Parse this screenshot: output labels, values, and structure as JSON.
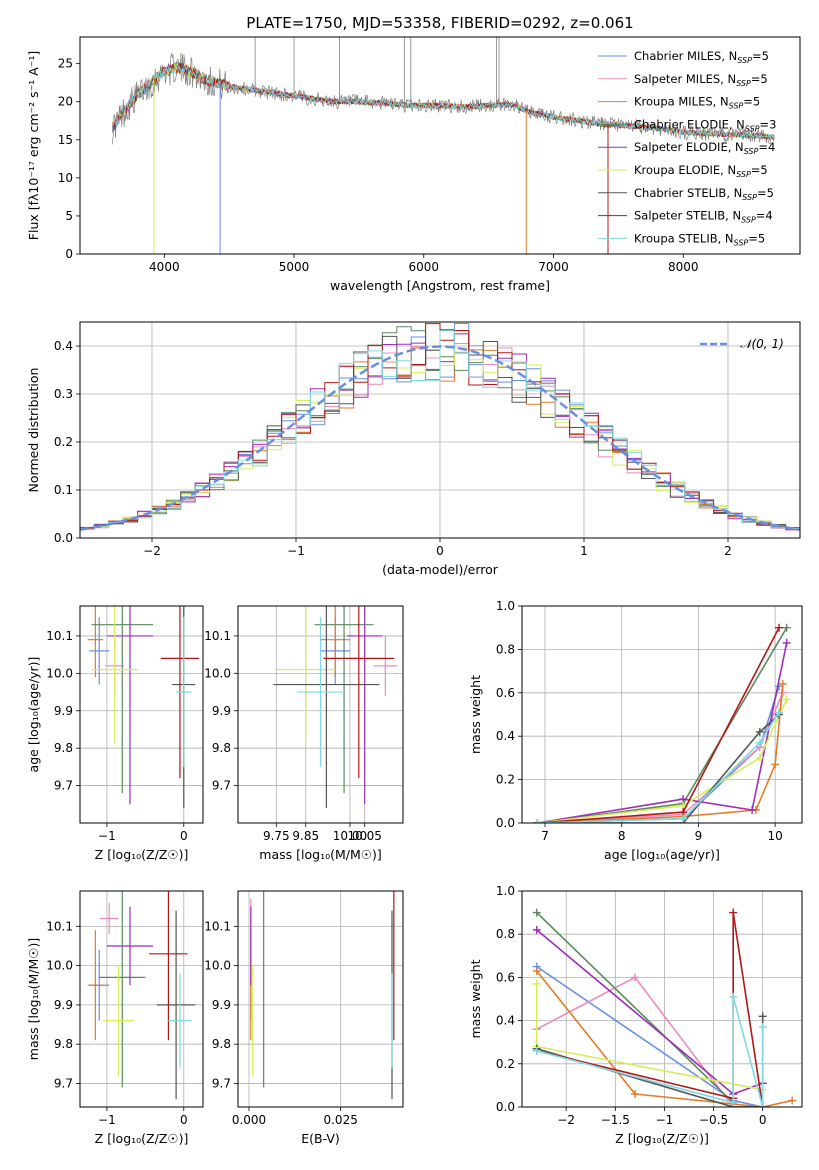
{
  "figure_title": "PLATE=1750, MJD=53358, FIBERID=0292, z=0.061",
  "colors": {
    "chabrier_miles": "#6a8fe0",
    "salpeter_miles": "#e88cbf",
    "kroupa_miles": "#e07b2c",
    "chabrier_elodie": "#5a8a5e",
    "salpeter_elodie": "#9b2fb8",
    "kroupa_elodie": "#d8ec5a",
    "chabrier_stelib": "#555555",
    "salpeter_stelib": "#b01818",
    "kroupa_stelib": "#7fd9e0",
    "grid": "#b0b0b0",
    "normal_curve": "#6a8fe0"
  },
  "chart_data": [
    {
      "id": "spectrum",
      "type": "line",
      "title": "PLATE=1750, MJD=53358, FIBERID=0292, z=0.061",
      "xlabel": "wavelength [Angstrom, rest frame]",
      "ylabel": "Flux [fλ10⁻¹⁷ erg cm⁻² s⁻¹ A⁻¹]",
      "xlim": [
        3350,
        8900
      ],
      "ylim": [
        0,
        28.5
      ],
      "xticks": [
        4000,
        5000,
        6000,
        7000,
        8000
      ],
      "yticks": [
        0,
        5,
        10,
        15,
        20,
        25
      ],
      "grid": false,
      "legend_position": "top-right",
      "legend": [
        "Chabrier MILES, N_SSP=5",
        "Salpeter MILES, N_SSP=5",
        "Kroupa MILES, N_SSP=5",
        "Chabrier ELODIE, N_SSP=3",
        "Salpeter ELODIE, N_SSP=4",
        "Kroupa ELODIE, N_SSP=5",
        "Chabrier STELIB, N_SSP=5",
        "Salpeter STELIB, N_SSP=4",
        "Kroupa STELIB, N_SSP=5"
      ],
      "trend": {
        "x": [
          3600,
          3700,
          3800,
          3900,
          4000,
          4100,
          4200,
          4300,
          4400,
          4500,
          4700,
          4900,
          5100,
          5300,
          5500,
          5700,
          5900,
          6100,
          6300,
          6500,
          6700,
          6800,
          7000,
          7200,
          7400,
          7600,
          7800,
          8000,
          8200,
          8400,
          8600,
          8700
        ],
        "y": [
          16.5,
          19,
          21,
          22.5,
          24,
          24.5,
          24,
          23,
          22.5,
          22,
          21.5,
          21,
          20.5,
          20,
          20,
          19.8,
          19.5,
          19.5,
          19.3,
          19.5,
          19.6,
          18.7,
          18,
          17.5,
          17,
          16.8,
          16.5,
          16,
          15.8,
          15.7,
          15.5,
          15.3
        ]
      }
    },
    {
      "id": "residuals",
      "type": "histogram",
      "xlabel": "(data-model)/error",
      "ylabel": "Normed distribution",
      "xlim": [
        -2.5,
        2.5
      ],
      "ylim": [
        0,
        0.45
      ],
      "xticks": [
        -2,
        -1,
        0,
        1,
        2
      ],
      "yticks": [
        0.0,
        0.1,
        0.2,
        0.3,
        0.4
      ],
      "grid": true,
      "legend_position": "top-right",
      "legend": [
        "𝒩(0, 1)"
      ],
      "normal": {
        "mu": 0,
        "sigma": 1
      }
    },
    {
      "id": "age-vs-Z",
      "type": "errorbar",
      "xlabel": "Z [log₁₀(Z/Z☉)]",
      "ylabel": "age  [log₁₀(age/yr)]",
      "xlim": [
        -1.35,
        0.25
      ],
      "ylim": [
        9.6,
        10.18
      ],
      "xticks": [
        -1,
        0
      ],
      "yticks": [
        9.7,
        9.8,
        9.9,
        10.0,
        10.1
      ],
      "grid": true,
      "points": [
        {
          "x": -1.1,
          "y": 10.06,
          "ex": 0.13,
          "ey": 0.09,
          "c": "chabrier_miles"
        },
        {
          "x": -0.9,
          "y": 10.02,
          "ex": 0.12,
          "ey": 0.08,
          "c": "salpeter_miles"
        },
        {
          "x": -1.15,
          "y": 10.09,
          "ex": 0.1,
          "ey": 0.1,
          "c": "kroupa_miles"
        },
        {
          "x": -0.8,
          "y": 10.13,
          "ex": 0.4,
          "ey": 0.45,
          "c": "chabrier_elodie"
        },
        {
          "x": -0.7,
          "y": 10.1,
          "ex": 0.3,
          "ey": 0.45,
          "c": "salpeter_elodie"
        },
        {
          "x": -0.9,
          "y": 10.01,
          "ex": 0.3,
          "ey": 0.2,
          "c": "kroupa_elodie"
        },
        {
          "x": 0.0,
          "y": 9.97,
          "ex": 0.15,
          "ey": 0.33,
          "c": "chabrier_stelib"
        },
        {
          "x": -0.05,
          "y": 10.04,
          "ex": 0.25,
          "ey": 0.32,
          "c": "salpeter_stelib"
        },
        {
          "x": 0.0,
          "y": 9.95,
          "ex": 0.1,
          "ey": 0.2,
          "c": "kroupa_stelib"
        }
      ]
    },
    {
      "id": "age-vs-mass",
      "type": "errorbar",
      "xlabel": "mass [log₁₀(M/M☉)]",
      "ylabel": "",
      "xlim": [
        9.62,
        10.18
      ],
      "ylim": [
        9.6,
        10.18
      ],
      "xticks": [
        9.75,
        9.85,
        10.0,
        10.05
      ],
      "xticklabels": [
        "9.75",
        "9.85",
        "10.00",
        "10.05"
      ],
      "yticks": [
        9.7,
        9.8,
        9.9,
        10.0,
        10.1
      ],
      "grid": true,
      "points": [
        {
          "x": 9.95,
          "y": 10.06,
          "ex": 0.05,
          "ey": 0.09,
          "c": "chabrier_miles"
        },
        {
          "x": 10.12,
          "y": 10.02,
          "ex": 0.04,
          "ey": 0.08,
          "c": "salpeter_miles"
        },
        {
          "x": 9.95,
          "y": 10.09,
          "ex": 0.05,
          "ey": 0.1,
          "c": "kroupa_miles"
        },
        {
          "x": 9.98,
          "y": 10.13,
          "ex": 0.1,
          "ey": 0.45,
          "c": "chabrier_elodie"
        },
        {
          "x": 10.05,
          "y": 10.1,
          "ex": 0.06,
          "ey": 0.45,
          "c": "salpeter_elodie"
        },
        {
          "x": 9.85,
          "y": 10.01,
          "ex": 0.1,
          "ey": 0.2,
          "c": "kroupa_elodie"
        },
        {
          "x": 9.92,
          "y": 9.97,
          "ex": 0.18,
          "ey": 0.33,
          "c": "chabrier_stelib"
        },
        {
          "x": 10.03,
          "y": 10.04,
          "ex": 0.12,
          "ey": 0.32,
          "c": "salpeter_stelib"
        },
        {
          "x": 9.9,
          "y": 9.95,
          "ex": 0.08,
          "ey": 0.2,
          "c": "kroupa_stelib"
        }
      ]
    },
    {
      "id": "weight-vs-age",
      "type": "line",
      "xlabel": "age  [log₁₀(age/yr)]",
      "ylabel": "mass weight",
      "xlim": [
        6.7,
        10.35
      ],
      "ylim": [
        0,
        1.0
      ],
      "xticks": [
        7,
        8,
        9,
        10
      ],
      "yticks": [
        0.0,
        0.2,
        0.4,
        0.6,
        0.8,
        1.0
      ],
      "grid": true,
      "series": [
        {
          "c": "chabrier_miles",
          "x": [
            6.9,
            8.8,
            9.8,
            10.05
          ],
          "y": [
            0.0,
            0.02,
            0.35,
            0.63
          ]
        },
        {
          "c": "salpeter_miles",
          "x": [
            6.9,
            8.8,
            9.8,
            10.1
          ],
          "y": [
            0.0,
            0.04,
            0.35,
            0.6
          ]
        },
        {
          "c": "kroupa_miles",
          "x": [
            6.9,
            8.8,
            9.75,
            10.0,
            10.1
          ],
          "y": [
            0.0,
            0.03,
            0.06,
            0.27,
            0.64
          ]
        },
        {
          "c": "chabrier_elodie",
          "x": [
            6.9,
            8.8,
            10.15
          ],
          "y": [
            0.0,
            0.09,
            0.9
          ]
        },
        {
          "c": "salpeter_elodie",
          "x": [
            6.9,
            8.8,
            9.7,
            10.15
          ],
          "y": [
            0.0,
            0.11,
            0.06,
            0.83
          ]
        },
        {
          "c": "kroupa_elodie",
          "x": [
            6.9,
            8.8,
            9.8,
            10.15
          ],
          "y": [
            0.0,
            0.08,
            0.3,
            0.57
          ]
        },
        {
          "c": "chabrier_stelib",
          "x": [
            6.9,
            8.8,
            9.8,
            10.05
          ],
          "y": [
            0.0,
            0.0,
            0.42,
            0.5
          ]
        },
        {
          "c": "salpeter_stelib",
          "x": [
            6.9,
            8.8,
            10.05
          ],
          "y": [
            0.0,
            0.05,
            0.9
          ]
        },
        {
          "c": "kroupa_stelib",
          "x": [
            6.9,
            8.8,
            9.8,
            10.05
          ],
          "y": [
            0.0,
            0.02,
            0.37,
            0.51
          ]
        }
      ]
    },
    {
      "id": "mass-vs-Z",
      "type": "errorbar",
      "xlabel": "Z [log₁₀(Z/Z☉)]",
      "ylabel": "mass [log₁₀(M/M☉)]",
      "xlim": [
        -1.35,
        0.25
      ],
      "ylim": [
        9.64,
        10.19
      ],
      "xticks": [
        -1,
        0
      ],
      "yticks": [
        9.7,
        9.8,
        9.9,
        10.0,
        10.1
      ],
      "grid": true,
      "points": [
        {
          "x": -1.1,
          "y": 9.95,
          "ex": 0.13,
          "ey": 0.09,
          "c": "chabrier_miles"
        },
        {
          "x": -0.97,
          "y": 10.12,
          "ex": 0.12,
          "ey": 0.04,
          "c": "salpeter_miles"
        },
        {
          "x": -1.15,
          "y": 9.95,
          "ex": 0.1,
          "ey": 0.14,
          "c": "kroupa_miles"
        },
        {
          "x": -0.8,
          "y": 9.97,
          "ex": 0.3,
          "ey": 0.28,
          "c": "chabrier_elodie"
        },
        {
          "x": -0.7,
          "y": 10.05,
          "ex": 0.3,
          "ey": 0.1,
          "c": "salpeter_elodie"
        },
        {
          "x": -0.85,
          "y": 9.86,
          "ex": 0.2,
          "ey": 0.14,
          "c": "kroupa_elodie"
        },
        {
          "x": -0.1,
          "y": 9.9,
          "ex": 0.25,
          "ey": 0.24,
          "c": "chabrier_stelib"
        },
        {
          "x": -0.2,
          "y": 10.03,
          "ex": 0.25,
          "ey": 0.22,
          "c": "salpeter_stelib"
        },
        {
          "x": -0.05,
          "y": 9.86,
          "ex": 0.15,
          "ey": 0.12,
          "c": "kroupa_stelib"
        }
      ]
    },
    {
      "id": "mass-vs-ebv",
      "type": "errorbar",
      "xlabel": "E(B-V)",
      "ylabel": "",
      "xlim": [
        -0.003,
        0.042
      ],
      "ylim": [
        9.64,
        10.19
      ],
      "xticks": [
        0.0,
        0.025
      ],
      "xticklabels": [
        "0.000",
        "0.025"
      ],
      "yticks": [
        9.7,
        9.8,
        9.9,
        10.0,
        10.1
      ],
      "grid": true,
      "points": [
        {
          "x": 0.0005,
          "y": 9.95,
          "ex": 0,
          "ey": 0.09,
          "c": "chabrier_miles"
        },
        {
          "x": 0.0005,
          "y": 10.12,
          "ex": 0,
          "ey": 0.05,
          "c": "salpeter_miles"
        },
        {
          "x": 0.0005,
          "y": 9.95,
          "ex": 0,
          "ey": 0.14,
          "c": "kroupa_miles"
        },
        {
          "x": 0.004,
          "y": 9.97,
          "ex": 0,
          "ey": 0.28,
          "c": "chabrier_elodie"
        },
        {
          "x": 0.0005,
          "y": 10.05,
          "ex": 0,
          "ey": 0.1,
          "c": "salpeter_elodie"
        },
        {
          "x": 0.001,
          "y": 9.86,
          "ex": 0,
          "ey": 0.14,
          "c": "kroupa_elodie"
        },
        {
          "x": 0.039,
          "y": 9.9,
          "ex": 0,
          "ey": 0.24,
          "c": "chabrier_stelib"
        },
        {
          "x": 0.0395,
          "y": 10.03,
          "ex": 0,
          "ey": 0.22,
          "c": "salpeter_stelib"
        },
        {
          "x": 0.039,
          "y": 9.86,
          "ex": 0,
          "ey": 0.12,
          "c": "kroupa_stelib"
        }
      ]
    },
    {
      "id": "weight-vs-Z",
      "type": "line",
      "xlabel": "Z [log₁₀(Z/Z☉)]",
      "ylabel": "mass weight",
      "xlim": [
        -2.45,
        0.4
      ],
      "ylim": [
        0,
        1.0
      ],
      "xticks": [
        -2.0,
        -1.5,
        -1.0,
        -0.5,
        0.0
      ],
      "yticks": [
        0.0,
        0.2,
        0.4,
        0.6,
        0.8,
        1.0
      ],
      "grid": true,
      "series": [
        {
          "c": "chabrier_miles",
          "x": [
            -2.3,
            -0.3,
            0.0
          ],
          "y": [
            0.65,
            0.03,
            0.0
          ]
        },
        {
          "c": "salpeter_miles",
          "x": [
            -2.3,
            -1.3,
            -0.3,
            0.0
          ],
          "y": [
            0.36,
            0.6,
            0.0,
            0.0
          ]
        },
        {
          "c": "kroupa_miles",
          "x": [
            -2.3,
            -1.3,
            0.0,
            0.3
          ],
          "y": [
            0.63,
            0.06,
            0.0,
            0.03
          ]
        },
        {
          "c": "chabrier_elodie",
          "x": [
            -2.3,
            -0.3
          ],
          "y": [
            0.9,
            0.02
          ]
        },
        {
          "c": "salpeter_elodie",
          "x": [
            -2.3,
            -0.3,
            0.0
          ],
          "y": [
            0.82,
            0.06,
            0.11
          ]
        },
        {
          "c": "kroupa_elodie",
          "x": [
            -2.3,
            -2.3,
            0.0
          ],
          "y": [
            0.57,
            0.28,
            0.08
          ]
        },
        {
          "c": "chabrier_stelib",
          "x": [
            -2.3,
            -0.3,
            0.0,
            0.0
          ],
          "y": [
            0.27,
            0.0,
            0.0,
            0.42
          ]
        },
        {
          "c": "salpeter_stelib",
          "x": [
            -2.3,
            -0.3,
            -0.3,
            0.0
          ],
          "y": [
            0.26,
            0.04,
            0.9,
            0.0
          ]
        },
        {
          "c": "kroupa_stelib",
          "x": [
            -2.3,
            -0.3,
            -0.3,
            0.0,
            0.0
          ],
          "y": [
            0.26,
            0.02,
            0.51,
            0.0,
            0.37
          ]
        }
      ]
    }
  ]
}
